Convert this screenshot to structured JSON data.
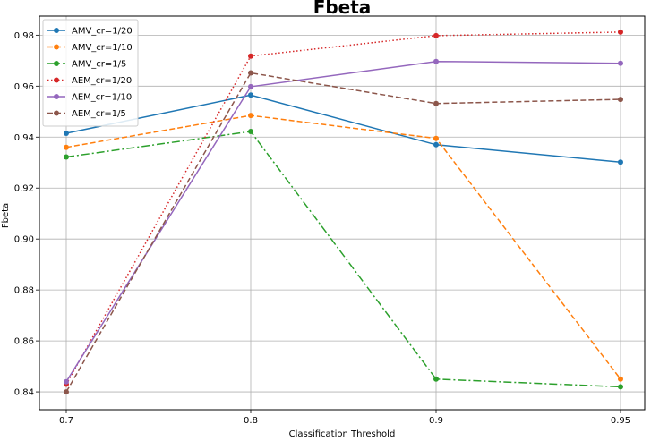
{
  "chart_data": {
    "type": "line",
    "title": "Fbeta",
    "xlabel": "Classification Threshold",
    "ylabel": "Fbeta",
    "categories": [
      "0.7",
      "0.8",
      "0.9",
      "0.95"
    ],
    "ylim": [
      0.833,
      0.9875
    ],
    "yticks": [
      "0.84",
      "0.86",
      "0.88",
      "0.90",
      "0.92",
      "0.94",
      "0.96",
      "0.98"
    ],
    "grid": true,
    "legend_position": "top-left",
    "series": [
      {
        "name": "AMV_cr=1/20",
        "values": [
          0.9415,
          0.9565,
          0.937,
          0.9302
        ],
        "color": "#1f77b4",
        "linestyle": "solid"
      },
      {
        "name": "AMV_cr=1/10",
        "values": [
          0.936,
          0.9485,
          0.9395,
          0.845
        ],
        "color": "#ff7f0e",
        "linestyle": "dashed"
      },
      {
        "name": "AMV_cr=1/5",
        "values": [
          0.9322,
          0.9422,
          0.845,
          0.842
        ],
        "color": "#2ca02c",
        "linestyle": "dashdot"
      },
      {
        "name": "AEM_cr=1/20",
        "values": [
          0.843,
          0.9718,
          0.9798,
          0.9812
        ],
        "color": "#d62728",
        "linestyle": "dotted"
      },
      {
        "name": "AEM_cr=1/10",
        "values": [
          0.844,
          0.9598,
          0.9697,
          0.969
        ],
        "color": "#9467bd",
        "linestyle": "solid"
      },
      {
        "name": "AEM_cr=1/5",
        "values": [
          0.84,
          0.9652,
          0.9532,
          0.9548
        ],
        "color": "#8c564b",
        "linestyle": "dashed"
      }
    ]
  }
}
